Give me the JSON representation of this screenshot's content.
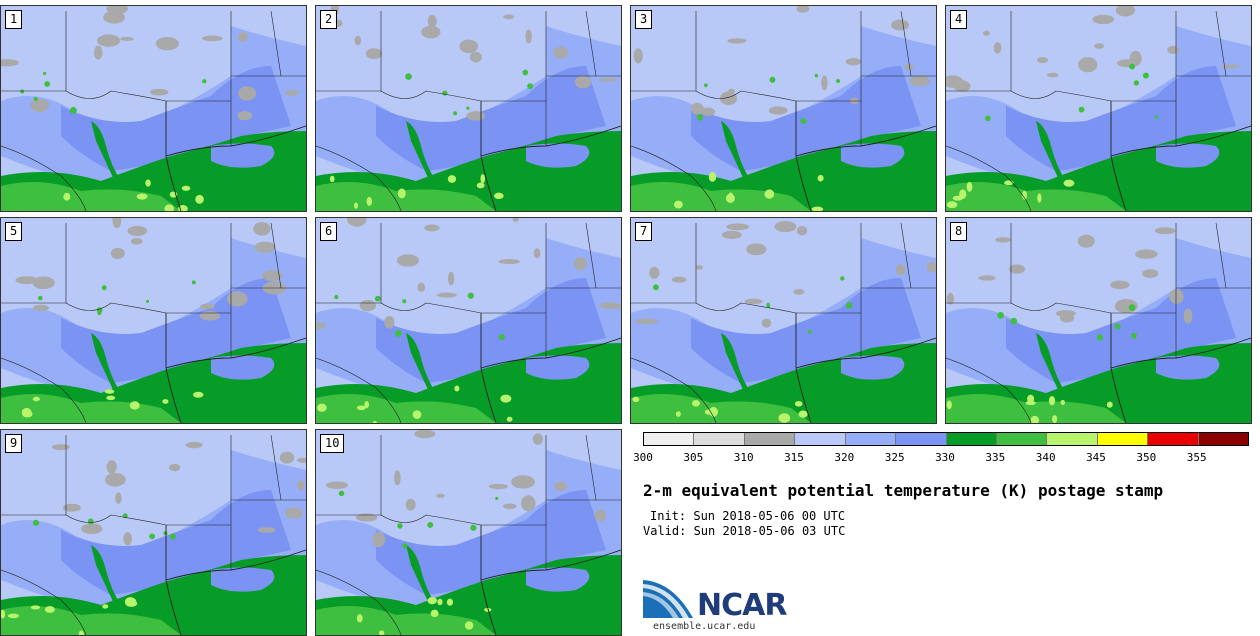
{
  "panels": [
    "1",
    "2",
    "3",
    "4",
    "5",
    "6",
    "7",
    "8",
    "9",
    "10"
  ],
  "colorbar": {
    "colors": [
      "#efefef",
      "#dcdcdc",
      "#a9a9a9",
      "#b8c8f7",
      "#95aef7",
      "#7b93f3",
      "#079c27",
      "#3fbf3f",
      "#b8f56d",
      "#ffff00",
      "#e60000",
      "#8b0000"
    ],
    "ticks": [
      "300",
      "305",
      "310",
      "315",
      "320",
      "325",
      "330",
      "335",
      "340",
      "345",
      "350",
      "355"
    ]
  },
  "title": "2-m equivalent potential temperature (K) postage stamp",
  "init": "Init: Sun 2018-05-06 00 UTC",
  "valid": "Valid: Sun 2018-05-06 03 UTC",
  "logo": {
    "text": "NCAR",
    "url": "ensemble.ucar.edu"
  }
}
